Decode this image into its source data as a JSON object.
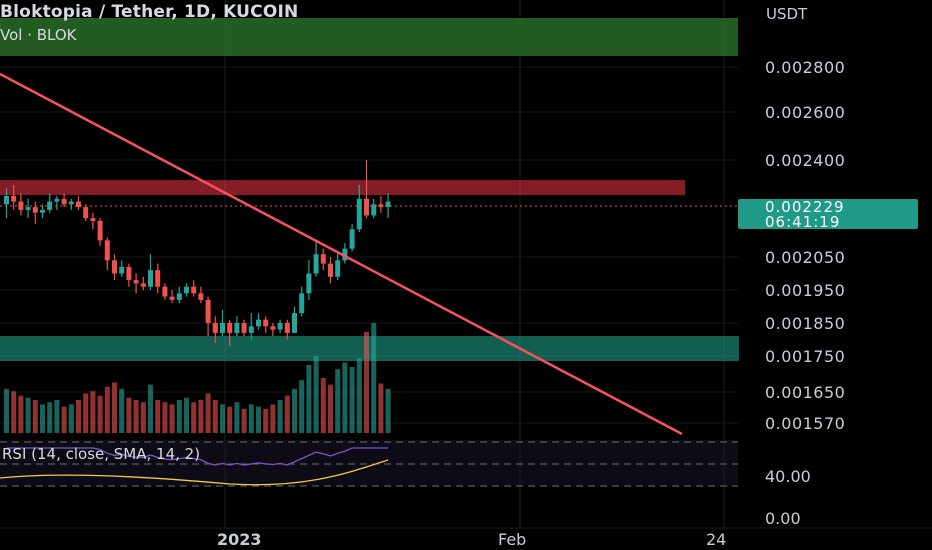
{
  "header": {
    "title": "Bloktopia / Tether, 1D, KUCOIN",
    "volume_label": "Vol · BLOK",
    "currency": "USDT"
  },
  "price_tag": {
    "price": "0.002229",
    "countdown": "06:41:19"
  },
  "rsi": {
    "label": "RSI (14, close, SMA, 14, 2)"
  },
  "colors": {
    "up": "#26a69a",
    "down": "#ef5350",
    "trendline": "#f7525f",
    "resistance_zone": "#f23645",
    "support_zone": "#22ab94",
    "top_zone": "#2a6b28",
    "rsi_line": "#7e57c2",
    "rsi_sma": "#f5c842"
  },
  "chart_data": {
    "type": "candlestick",
    "title": "Bloktopia / Tether, 1D, KUCOIN",
    "y_ticks": [
      "0.002800",
      "0.002600",
      "0.002400",
      "0.002050",
      "0.001950",
      "0.001850",
      "0.001750",
      "0.001650",
      "0.001570"
    ],
    "x_ticks": [
      "2023",
      "Feb",
      "24"
    ],
    "rsi_ticks": [
      "40.00",
      "0.00"
    ],
    "last_price": 0.002229,
    "resistance_zone": [
      0.002275,
      0.002295
    ],
    "support_zone": [
      0.001775,
      0.00181
    ],
    "candles": [
      [
        0.00224,
        0.00227,
        0.0023,
        0.00219
      ],
      [
        0.00227,
        0.00225,
        0.00231,
        0.00222
      ],
      [
        0.00225,
        0.00222,
        0.00228,
        0.0022
      ],
      [
        0.00222,
        0.00223,
        0.00226,
        0.00219
      ],
      [
        0.00223,
        0.00221,
        0.00225,
        0.00217
      ],
      [
        0.00221,
        0.00222,
        0.00224,
        0.00219
      ],
      [
        0.00222,
        0.00225,
        0.00228,
        0.00221
      ],
      [
        0.00225,
        0.00226,
        0.00227,
        0.00222
      ],
      [
        0.00226,
        0.00224,
        0.00228,
        0.00223
      ],
      [
        0.00224,
        0.00225,
        0.00226,
        0.00222
      ],
      [
        0.00225,
        0.00223,
        0.00227,
        0.00222
      ],
      [
        0.00223,
        0.00219,
        0.00224,
        0.00218
      ],
      [
        0.00219,
        0.00218,
        0.00221,
        0.00215
      ],
      [
        0.00218,
        0.00211,
        0.00219,
        0.00209
      ],
      [
        0.00211,
        0.00204,
        0.00212,
        0.00201
      ],
      [
        0.00204,
        0.002,
        0.00206,
        0.00198
      ],
      [
        0.002,
        0.00202,
        0.00204,
        0.00199
      ],
      [
        0.00202,
        0.00198,
        0.00203,
        0.00196
      ],
      [
        0.00198,
        0.00197,
        0.002,
        0.00194
      ],
      [
        0.00197,
        0.00196,
        0.00199,
        0.00195
      ],
      [
        0.00196,
        0.00201,
        0.00206,
        0.00195
      ],
      [
        0.00201,
        0.00196,
        0.00203,
        0.00194
      ],
      [
        0.00196,
        0.00193,
        0.00197,
        0.00192
      ],
      [
        0.00193,
        0.00192,
        0.00195,
        0.00191
      ],
      [
        0.00192,
        0.00194,
        0.00196,
        0.00191
      ],
      [
        0.00194,
        0.00196,
        0.00197,
        0.00193
      ],
      [
        0.00196,
        0.00194,
        0.00198,
        0.00193
      ],
      [
        0.00194,
        0.00192,
        0.00196,
        0.00191
      ],
      [
        0.00192,
        0.00185,
        0.00193,
        0.00181
      ],
      [
        0.00185,
        0.00182,
        0.00187,
        0.00179
      ],
      [
        0.00182,
        0.00185,
        0.00189,
        0.00181
      ],
      [
        0.00185,
        0.00182,
        0.00186,
        0.00178
      ],
      [
        0.00182,
        0.00185,
        0.00187,
        0.00181
      ],
      [
        0.00185,
        0.00182,
        0.00186,
        0.00181
      ],
      [
        0.00182,
        0.00184,
        0.00188,
        0.0018
      ],
      [
        0.00184,
        0.00186,
        0.00188,
        0.00183
      ],
      [
        0.00186,
        0.00184,
        0.00187,
        0.00182
      ],
      [
        0.00184,
        0.00183,
        0.00185,
        0.00181
      ],
      [
        0.00183,
        0.00185,
        0.00186,
        0.00182
      ],
      [
        0.00185,
        0.00182,
        0.00186,
        0.0018
      ],
      [
        0.00182,
        0.00188,
        0.0019,
        0.00182
      ],
      [
        0.00188,
        0.00194,
        0.00196,
        0.00187
      ],
      [
        0.00194,
        0.002,
        0.00204,
        0.00192
      ],
      [
        0.002,
        0.00206,
        0.00211,
        0.00199
      ],
      [
        0.00206,
        0.00203,
        0.00208,
        0.00201
      ],
      [
        0.00203,
        0.00199,
        0.00205,
        0.00197
      ],
      [
        0.00199,
        0.00204,
        0.00207,
        0.00198
      ],
      [
        0.00204,
        0.00208,
        0.0021,
        0.00203
      ],
      [
        0.00208,
        0.00215,
        0.00217,
        0.00207
      ],
      [
        0.00215,
        0.00226,
        0.00231,
        0.00214
      ],
      [
        0.00226,
        0.0022,
        0.0024,
        0.00219
      ],
      [
        0.0022,
        0.00224,
        0.00226,
        0.00219
      ],
      [
        0.00224,
        0.00223,
        0.00227,
        0.00221
      ],
      [
        0.00223,
        0.00225,
        0.00228,
        0.00219
      ]
    ],
    "volume": [
      40,
      38,
      34,
      32,
      30,
      26,
      28,
      30,
      24,
      26,
      30,
      36,
      38,
      34,
      42,
      46,
      40,
      32,
      30,
      28,
      44,
      30,
      28,
      26,
      30,
      32,
      28,
      30,
      36,
      30,
      26,
      24,
      28,
      22,
      26,
      24,
      22,
      26,
      30,
      34,
      40,
      48,
      62,
      70,
      50,
      44,
      58,
      64,
      60,
      68,
      92,
      100,
      45,
      40
    ]
  }
}
